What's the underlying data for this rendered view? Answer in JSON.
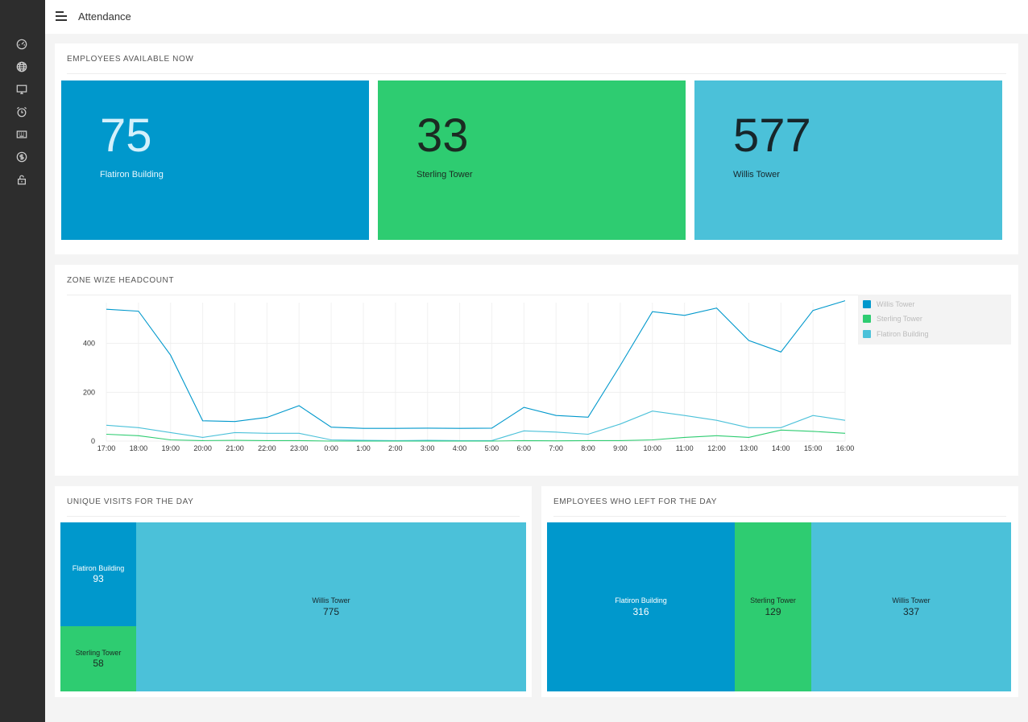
{
  "header": {
    "title": "Attendance"
  },
  "sidebar": {
    "items": [
      {
        "icon": "dashboard-icon"
      },
      {
        "icon": "globe-icon"
      },
      {
        "icon": "monitor-icon"
      },
      {
        "icon": "alarm-clock-icon"
      },
      {
        "icon": "keyboard-icon"
      },
      {
        "icon": "dollar-icon"
      },
      {
        "icon": "unlock-icon"
      }
    ]
  },
  "colors": {
    "flatiron": "#0098cc",
    "sterling": "#2ecc71",
    "willis": "#4bc1d9",
    "sidebar": "#2d2d2d"
  },
  "available": {
    "title": "EMPLOYEES AVAILABLE NOW",
    "items": [
      {
        "value": "75",
        "label": "Flatiron Building"
      },
      {
        "value": "33",
        "label": "Sterling Tower"
      },
      {
        "value": "577",
        "label": "Willis Tower"
      }
    ]
  },
  "headcount": {
    "title": "ZONE WIZE HEADCOUNT"
  },
  "chart_data": {
    "type": "line",
    "title": "ZONE WIZE HEADCOUNT",
    "x": [
      "17:00",
      "18:00",
      "19:00",
      "20:00",
      "21:00",
      "22:00",
      "23:00",
      "0:00",
      "1:00",
      "2:00",
      "3:00",
      "4:00",
      "5:00",
      "6:00",
      "7:00",
      "8:00",
      "9:00",
      "10:00",
      "11:00",
      "12:00",
      "13:00",
      "14:00",
      "15:00",
      "16:00"
    ],
    "y_ticks": [
      "0",
      "200",
      "400"
    ],
    "ylim": [
      0,
      600
    ],
    "grid": true,
    "legend_position": "right",
    "series": [
      {
        "name": "Willis Tower",
        "color": "#0098cc",
        "values": [
          540,
          532,
          352,
          83,
          80,
          97,
          145,
          57,
          52,
          52,
          53,
          52,
          53,
          138,
          105,
          98,
          310,
          530,
          515,
          545,
          412,
          365,
          535,
          575
        ]
      },
      {
        "name": "Sterling Tower",
        "color": "#2ecc71",
        "values": [
          28,
          22,
          5,
          2,
          3,
          2,
          2,
          0,
          0,
          0,
          0,
          0,
          0,
          2,
          1,
          2,
          2,
          5,
          15,
          22,
          15,
          45,
          40,
          32
        ]
      },
      {
        "name": "Flatiron Building",
        "color": "#4bc1d9",
        "values": [
          65,
          55,
          35,
          15,
          35,
          32,
          32,
          5,
          3,
          2,
          3,
          2,
          2,
          42,
          37,
          28,
          70,
          123,
          105,
          85,
          55,
          55,
          105,
          85
        ]
      }
    ]
  },
  "unique_visits": {
    "title": "UNIQUE VISITS FOR THE DAY",
    "items": [
      {
        "label": "Flatiron Building",
        "value": "93"
      },
      {
        "label": "Sterling Tower",
        "value": "58"
      },
      {
        "label": "Willis Tower",
        "value": "775"
      }
    ]
  },
  "left_day": {
    "title": "EMPLOYEES WHO LEFT FOR THE DAY",
    "items": [
      {
        "label": "Flatiron Building",
        "value": "316"
      },
      {
        "label": "Sterling Tower",
        "value": "129"
      },
      {
        "label": "Willis Tower",
        "value": "337"
      }
    ]
  }
}
